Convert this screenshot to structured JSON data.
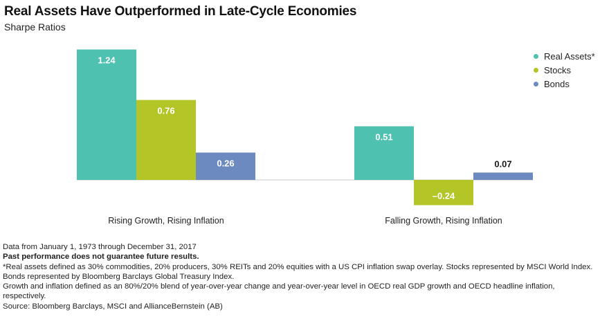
{
  "header": {
    "title": "Real Assets Have Outperformed in Late-Cycle Economies",
    "subtitle": "Sharpe Ratios"
  },
  "colors": {
    "real_assets": "#4fc1b1",
    "stocks": "#b3c527",
    "bonds": "#6d8ac0",
    "baseline": "#c8c8c8"
  },
  "chart_data": {
    "type": "bar",
    "categories": [
      "Rising Growth, Rising Inflation",
      "Falling Growth, Rising Inflation"
    ],
    "series": [
      {
        "name": "Real Assets*",
        "values": [
          1.24,
          0.51
        ],
        "labels": [
          "1.24",
          "0.51"
        ],
        "color": "#4fc1b1"
      },
      {
        "name": "Stocks",
        "values": [
          0.76,
          -0.24
        ],
        "labels": [
          "0.76",
          "–0.24"
        ],
        "color": "#b3c527"
      },
      {
        "name": "Bonds",
        "values": [
          0.26,
          0.07
        ],
        "labels": [
          "0.26",
          "0.07"
        ],
        "color": "#6d8ac0"
      }
    ],
    "ylim": [
      -0.24,
      1.24
    ],
    "grid": false,
    "legend_position": "top-right"
  },
  "footnotes": {
    "line1": "Data from January 1, 1973 through December 31, 2017",
    "line2": "Past performance does not guarantee future results.",
    "line3": "*Real assets defined as 30% commodities, 20% producers, 30% REITs and 20% equities with a US CPI inflation swap overlay. Stocks represented by MSCI World Index. Bonds represented by Bloomberg Barclays Global Treasury Index.",
    "line4": "Growth and inflation defined as an 80%/20% blend of year-over-year change and year-over-year level in OECD real GDP growth and OECD headline inflation, respectively.",
    "line5": "Source: Bloomberg Barclays, MSCI and AllianceBernstein (AB)"
  }
}
